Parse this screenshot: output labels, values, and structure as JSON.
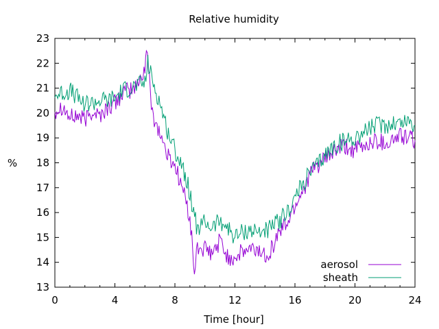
{
  "chart_data": {
    "type": "line",
    "title": "Relative humidity",
    "xlabel": "Time [hour]",
    "ylabel": "%",
    "xlim": [
      0,
      24
    ],
    "ylim": [
      13,
      23
    ],
    "xticks": [
      0,
      4,
      8,
      12,
      16,
      20,
      24
    ],
    "yticks": [
      13,
      14,
      15,
      16,
      17,
      18,
      19,
      20,
      21,
      22,
      23
    ],
    "grid": false,
    "legend_position": "bottom-right",
    "series": [
      {
        "name": "aerosol",
        "color": "#9400d3",
        "x": [
          0,
          0.5,
          1,
          1.5,
          2,
          2.5,
          3,
          3.5,
          4,
          4.5,
          5,
          5.5,
          6,
          6.1,
          6.5,
          7,
          7.5,
          8,
          8.5,
          9,
          9.3,
          9.5,
          10,
          10.5,
          11,
          11.5,
          12,
          12.5,
          13,
          13.5,
          14,
          14.5,
          15,
          15.5,
          16,
          16.5,
          17,
          17.5,
          18,
          18.5,
          19,
          19.5,
          20,
          20.5,
          21,
          21.5,
          22,
          22.5,
          23,
          23.5,
          24
        ],
        "y": [
          20.1,
          20.3,
          19.8,
          19.9,
          19.7,
          20.1,
          19.9,
          20.2,
          20.4,
          20.8,
          20.9,
          21.1,
          21.8,
          22.6,
          20.0,
          19.2,
          18.3,
          17.9,
          17.0,
          15.8,
          13.6,
          14.6,
          14.5,
          14.3,
          14.9,
          14.2,
          14.2,
          14.4,
          14.5,
          14.5,
          14.3,
          14.6,
          15.3,
          15.6,
          16.3,
          16.9,
          17.5,
          17.9,
          18.1,
          18.4,
          18.6,
          18.6,
          18.5,
          18.6,
          18.8,
          18.9,
          18.8,
          18.9,
          19.1,
          19.0,
          18.9
        ]
      },
      {
        "name": "sheath",
        "color": "#009e73",
        "x": [
          0,
          0.5,
          1,
          1.5,
          2,
          2.5,
          3,
          3.5,
          4,
          4.5,
          5,
          5.5,
          6,
          6.2,
          6.5,
          7,
          7.5,
          8,
          8.5,
          9,
          9.5,
          10,
          10.5,
          11,
          11.5,
          12,
          12.5,
          13,
          13.5,
          14,
          14.5,
          15,
          15.5,
          16,
          16.5,
          17,
          17.5,
          18,
          18.5,
          19,
          19.5,
          20,
          20.5,
          21,
          21.5,
          22,
          22.5,
          23,
          23.5,
          24
        ],
        "y": [
          20.7,
          20.8,
          20.9,
          20.6,
          20.4,
          20.4,
          20.5,
          20.5,
          20.6,
          20.9,
          21.0,
          21.1,
          21.2,
          22.0,
          21.3,
          20.4,
          19.3,
          18.5,
          17.9,
          16.8,
          15.3,
          15.6,
          15.4,
          15.7,
          15.4,
          15.0,
          15.2,
          15.3,
          15.2,
          15.3,
          15.4,
          15.7,
          16.0,
          16.6,
          17.1,
          17.6,
          17.9,
          18.3,
          18.6,
          18.8,
          18.9,
          19.0,
          19.2,
          19.4,
          19.5,
          19.5,
          19.6,
          19.6,
          19.7,
          19.5
        ]
      }
    ]
  }
}
